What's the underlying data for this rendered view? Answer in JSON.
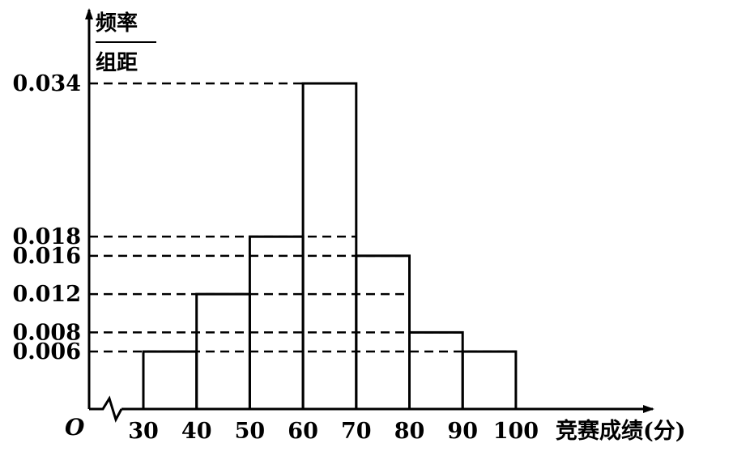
{
  "chart_data": {
    "type": "bar",
    "title": "",
    "xlabel": "竞赛成绩(分)",
    "ylabel_numerator": "频率",
    "ylabel_denominator": "组距",
    "origin_label": "O",
    "bin_edges": [
      30,
      40,
      50,
      60,
      70,
      80,
      90,
      100
    ],
    "x_tick_labels": [
      "30",
      "40",
      "50",
      "60",
      "70",
      "80",
      "90",
      "100"
    ],
    "values": [
      0.006,
      0.012,
      0.018,
      0.034,
      0.016,
      0.008,
      0.006
    ],
    "y_tick_labels": [
      "0.034",
      "0.018",
      "0.016",
      "0.012",
      "0.008",
      "0.006"
    ],
    "y_ticks": [
      0.034,
      0.018,
      0.016,
      0.012,
      0.008,
      0.006
    ],
    "xlim": [
      30,
      100
    ],
    "ylim": [
      0,
      0.034
    ],
    "axis_break": true,
    "grid": false,
    "reference_lines": "dashed"
  }
}
